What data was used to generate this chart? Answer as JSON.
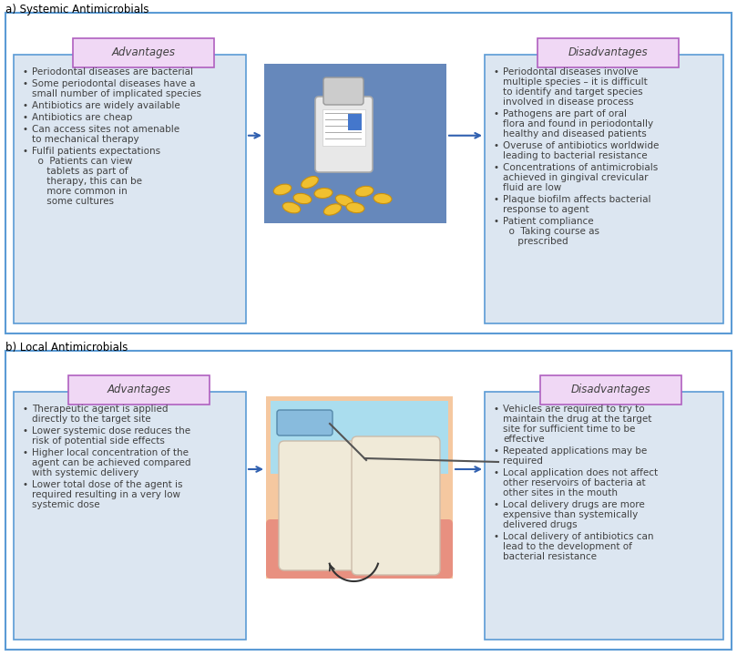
{
  "title_a": "a) Systemic Antimicrobials",
  "title_b": "b) Local Antimicrobials",
  "adv_label": "Advantages",
  "dis_label": "Disadvantages",
  "outer_border_color": "#5b9bd5",
  "box_bg_color": "#dce6f1",
  "header_bg_color": "#f0d8f5",
  "header_border_color": "#b060c0",
  "text_color": "#404040",
  "arrow_color": "#3060b0",
  "systemic_adv_bullets": [
    [
      "Periodontal diseases are bacterial"
    ],
    [
      "Some periodontal diseases have a",
      "small number of implicated species"
    ],
    [
      "Antibiotics are widely available"
    ],
    [
      "Antibiotics are cheap"
    ],
    [
      "Can access sites not amenable",
      "to mechanical therapy"
    ],
    [
      "Fulfil patients expectations",
      "  o  Patients can view",
      "     tablets as part of",
      "     therapy, this can be",
      "     more common in",
      "     some cultures"
    ]
  ],
  "systemic_dis_bullets": [
    [
      "Periodontal diseases involve",
      "multiple species – it is difficult",
      "to identify and target species",
      "involved in disease process"
    ],
    [
      "Pathogens are part of oral",
      "flora and found in periodontally",
      "healthy and diseased patients"
    ],
    [
      "Overuse of antibiotics worldwide",
      "leading to bacterial resistance"
    ],
    [
      "Concentrations of antimicrobials",
      "achieved in gingival crevicular",
      "fluid are low"
    ],
    [
      "Plaque biofilm affects bacterial",
      "response to agent"
    ],
    [
      "Patient compliance",
      "  o  Taking course as",
      "     prescribed"
    ]
  ],
  "local_adv_bullets": [
    [
      "Therapeutic agent is applied",
      "directly to the target site"
    ],
    [
      "Lower systemic dose reduces the",
      "risk of potential side effects"
    ],
    [
      "Higher local concentration of the",
      "agent can be achieved compared",
      "with systemic delivery"
    ],
    [
      "Lower total dose of the agent is",
      "required resulting in a very low",
      "systemic dose"
    ]
  ],
  "local_dis_bullets": [
    [
      "Vehicles are required to try to",
      "maintain the drug at the target",
      "site for sufficient time to be",
      "effective"
    ],
    [
      "Repeated applications may be",
      "required"
    ],
    [
      "Local application does not affect",
      "other reservoirs of bacteria at",
      "other sites in the mouth"
    ],
    [
      "Local delivery drugs are more",
      "expensive than systemically",
      "delivered drugs"
    ],
    [
      "Local delivery of antibiotics can",
      "lead to the development of",
      "bacterial resistance"
    ]
  ]
}
